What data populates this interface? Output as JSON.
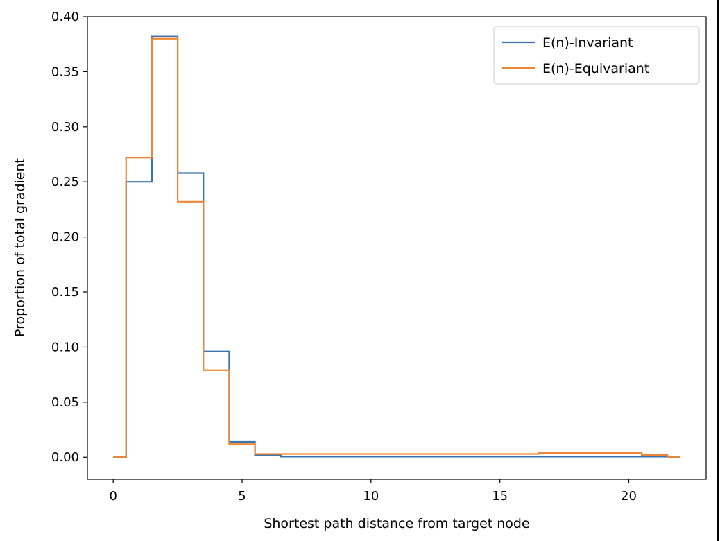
{
  "chart_data": {
    "type": "line",
    "subtype": "step",
    "title": "",
    "xlabel": "Shortest path distance from target node",
    "ylabel": "Proportion of total gradient",
    "xlim": [
      -1,
      23
    ],
    "ylim": [
      -0.02,
      0.4
    ],
    "x_ticks": [
      0,
      5,
      10,
      15,
      20
    ],
    "x_tick_labels": [
      "0",
      "5",
      "10",
      "15",
      "20"
    ],
    "y_ticks": [
      0.0,
      0.05,
      0.1,
      0.15,
      0.2,
      0.25,
      0.3,
      0.35,
      0.4
    ],
    "y_tick_labels": [
      "0.00",
      "0.05",
      "0.10",
      "0.15",
      "0.20",
      "0.25",
      "0.30",
      "0.35",
      "0.40"
    ],
    "grid": false,
    "legend_position": "top-right",
    "series": [
      {
        "name": "E(n)-Invariant",
        "color": "#3a75af",
        "x": [
          0,
          1,
          2,
          3,
          4,
          5,
          6,
          7,
          8,
          9,
          10,
          11,
          12,
          13,
          14,
          15,
          16,
          17,
          18,
          19,
          20,
          21,
          22
        ],
        "y": [
          0.0,
          0.25,
          0.382,
          0.258,
          0.096,
          0.014,
          0.002,
          0.0005,
          0.0005,
          0.0005,
          0.0005,
          0.0005,
          0.0005,
          0.0005,
          0.0005,
          0.0005,
          0.0005,
          0.0005,
          0.0005,
          0.0005,
          0.0005,
          0.0005,
          0.0
        ]
      },
      {
        "name": "E(n)-Equivariant",
        "color": "#ef8636",
        "x": [
          0,
          1,
          2,
          3,
          4,
          5,
          6,
          7,
          8,
          9,
          10,
          11,
          12,
          13,
          14,
          15,
          16,
          17,
          18,
          19,
          20,
          21,
          22
        ],
        "y": [
          0.0,
          0.272,
          0.38,
          0.232,
          0.079,
          0.012,
          0.003,
          0.003,
          0.003,
          0.003,
          0.003,
          0.003,
          0.003,
          0.003,
          0.003,
          0.003,
          0.003,
          0.004,
          0.004,
          0.004,
          0.004,
          0.002,
          0.0
        ]
      }
    ]
  }
}
